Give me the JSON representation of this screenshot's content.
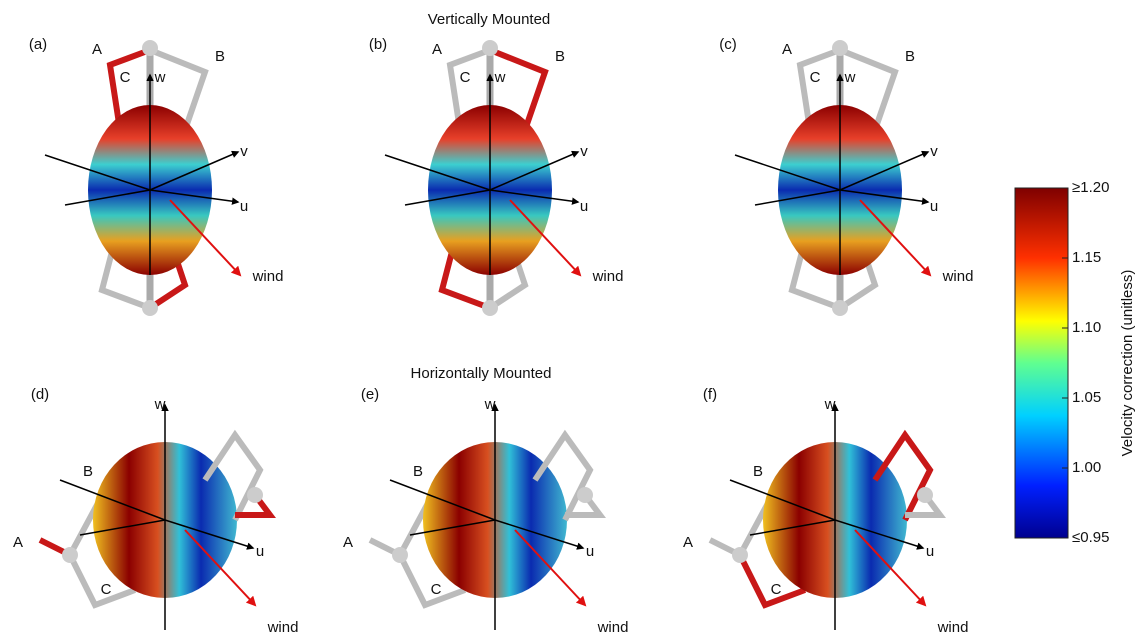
{
  "headings": [
    "Vertically Mounted",
    "Horizontally Mounted"
  ],
  "panels": [
    {
      "label": "(a)",
      "arms": [
        "A",
        "B",
        "C"
      ],
      "axes": [
        "w",
        "v",
        "u"
      ],
      "wind": "wind"
    },
    {
      "label": "(b)",
      "arms": [
        "A",
        "B",
        "C"
      ],
      "axes": [
        "w",
        "v",
        "u"
      ],
      "wind": "wind"
    },
    {
      "label": "(c)",
      "arms": [
        "A",
        "B",
        "C"
      ],
      "axes": [
        "w",
        "v",
        "u"
      ],
      "wind": "wind"
    },
    {
      "label": "(d)",
      "arms": [
        "A",
        "B",
        "C"
      ],
      "axes": [
        "w",
        "u"
      ],
      "wind": "wind"
    },
    {
      "label": "(e)",
      "arms": [
        "A",
        "B",
        "C"
      ],
      "axes": [
        "w",
        "u"
      ],
      "wind": "wind"
    },
    {
      "label": "(f)",
      "arms": [
        "A",
        "B",
        "C"
      ],
      "axes": [
        "w",
        "u"
      ],
      "wind": "wind"
    }
  ],
  "colorbar": {
    "label": "Velocity correction (unitless)",
    "lim": [
      0.95,
      1.2
    ],
    "ticks": [
      {
        "value": 0.95,
        "label": "≤0.95"
      },
      {
        "value": 1,
        "label": "1.00"
      },
      {
        "value": 1.05,
        "label": "1.05"
      },
      {
        "value": 1.1,
        "label": "1.10"
      },
      {
        "value": 1.15,
        "label": "1.15"
      },
      {
        "value": 1.2,
        "label": "≥1.20"
      }
    ]
  }
}
